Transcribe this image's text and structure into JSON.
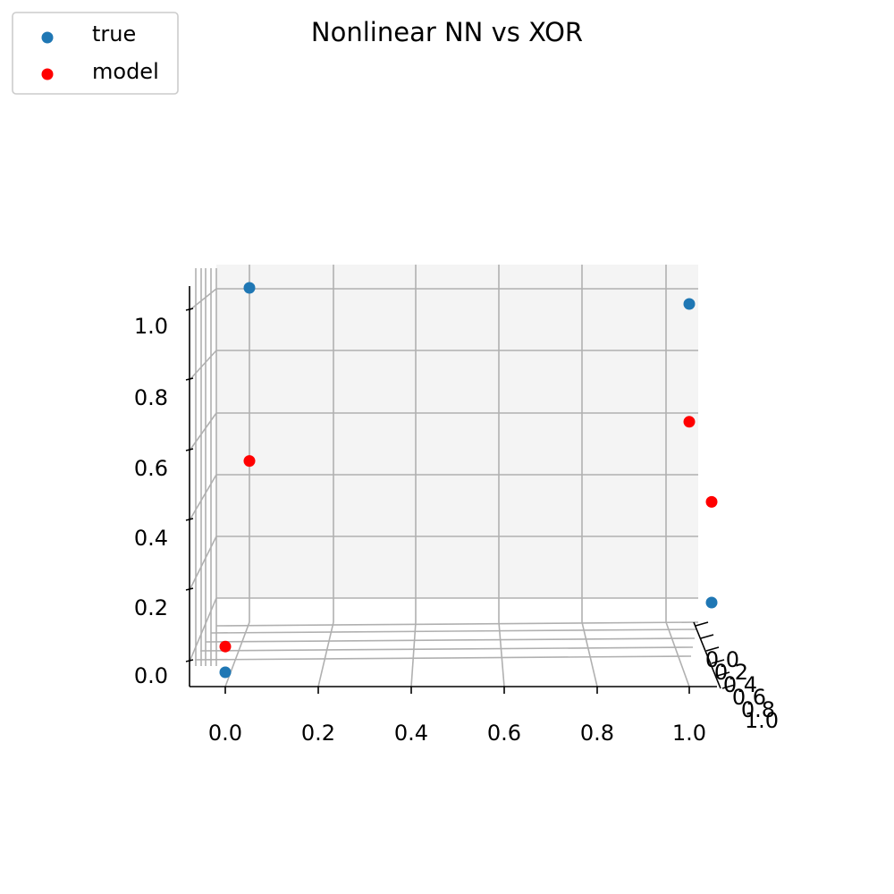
{
  "chart_data": {
    "type": "scatter",
    "title": "Nonlinear NN vs XOR",
    "projection": "3d",
    "xlabel": "",
    "ylabel": "",
    "zlabel": "",
    "x_ticks": [
      "0.0",
      "0.2",
      "0.4",
      "0.6",
      "0.8",
      "1.0"
    ],
    "y_ticks": [
      "0.0",
      "0.2",
      "0.4",
      "0.6",
      "0.8",
      "1.0"
    ],
    "z_ticks": [
      "0.0",
      "0.2",
      "0.4",
      "0.6",
      "0.8",
      "1.0"
    ],
    "xlim": [
      -0.05,
      1.05
    ],
    "ylim": [
      -0.05,
      1.05
    ],
    "zlim": [
      -0.05,
      1.1
    ],
    "grid": true,
    "legend_position": "top-left",
    "series": [
      {
        "name": "true",
        "color": "#1f77b4",
        "points": [
          {
            "x": 0,
            "y": 0,
            "z": 0
          },
          {
            "x": 0,
            "y": 1,
            "z": 1
          },
          {
            "x": 1,
            "y": 0,
            "z": 1
          },
          {
            "x": 1,
            "y": 1,
            "z": 0
          }
        ]
      },
      {
        "name": "model",
        "color": "#ff0000",
        "points": [
          {
            "x": 0,
            "y": 0,
            "z": 0.07
          },
          {
            "x": 0,
            "y": 1,
            "z": 0.45
          },
          {
            "x": 1,
            "y": 0,
            "z": 0.68
          },
          {
            "x": 1,
            "y": 1,
            "z": 0.32
          }
        ]
      }
    ]
  }
}
